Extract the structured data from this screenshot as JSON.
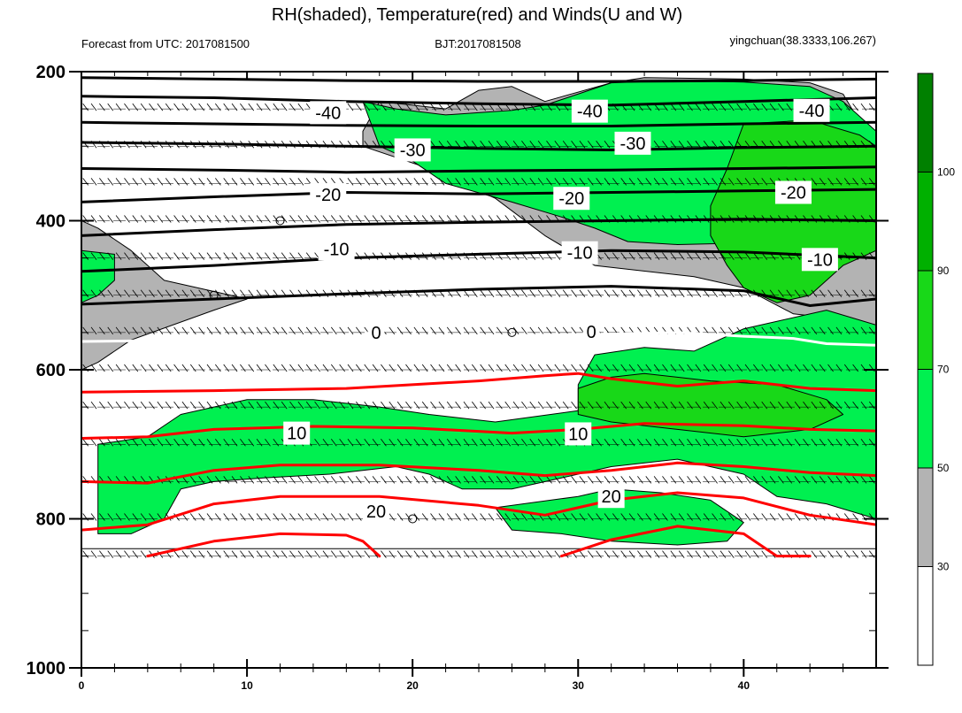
{
  "chart_data": {
    "type": "area",
    "title": "RH(shaded), Temperature(red) and Winds(U and W)",
    "subtitle_left": "Forecast from UTC: 2017081500",
    "subtitle_center": "BJT:2017081508",
    "subtitle_right": "yingchuan(38.3333,106.267)",
    "xlim": [
      0,
      48
    ],
    "ylim": [
      1000,
      200
    ],
    "x_ticks": [
      0,
      10,
      20,
      30,
      40
    ],
    "y_ticks": [
      200,
      400,
      600,
      800,
      1000
    ],
    "colorbar": {
      "ticks": [
        30,
        50,
        70,
        90,
        100
      ],
      "colors": [
        "#ffffff",
        "#b3b3b3",
        "#00f050",
        "#18d818",
        "#00b000",
        "#008000"
      ]
    },
    "colors": {
      "gray": "#b3b3b3",
      "green_light": "#00f050",
      "green_mid": "#18d818",
      "green_dark": "#00b000",
      "temp_warm": "#ff0000",
      "temp_cold": "#000000",
      "freezing": "#ffffff"
    },
    "rh_regions": [
      {
        "level": "gray",
        "points": [
          [
            0,
            400
          ],
          [
            1,
            410
          ],
          [
            3,
            440
          ],
          [
            5,
            480
          ],
          [
            8,
            495
          ],
          [
            10,
            505
          ],
          [
            8,
            520
          ],
          [
            3,
            560
          ],
          [
            1,
            590
          ],
          [
            0,
            600
          ],
          [
            0,
            840
          ],
          [
            48,
            840
          ],
          [
            48,
            305
          ],
          [
            46,
            230
          ],
          [
            44,
            215
          ],
          [
            40,
            210
          ],
          [
            34,
            208
          ],
          [
            32,
            215
          ],
          [
            28,
            240
          ],
          [
            26,
            220
          ],
          [
            24,
            225
          ],
          [
            22,
            250
          ],
          [
            20,
            245
          ],
          [
            18,
            240
          ],
          [
            17,
            280
          ],
          [
            17,
            300
          ],
          [
            21,
            330
          ],
          [
            25,
            370
          ],
          [
            28,
            420
          ],
          [
            31,
            460
          ],
          [
            37,
            475
          ],
          [
            40,
            490
          ],
          [
            43,
            525
          ],
          [
            47,
            535
          ],
          [
            48,
            540
          ],
          [
            48,
            840
          ],
          [
            0,
            840
          ]
        ]
      },
      {
        "level": "green_light",
        "points": [
          [
            0,
            440
          ],
          [
            2,
            445
          ],
          [
            2,
            480
          ],
          [
            1,
            500
          ],
          [
            0,
            510
          ]
        ]
      },
      {
        "level": "green_light",
        "points": [
          [
            1,
            700
          ],
          [
            4,
            690
          ],
          [
            6,
            660
          ],
          [
            10,
            640
          ],
          [
            14,
            640
          ],
          [
            18,
            650
          ],
          [
            21,
            660
          ],
          [
            25,
            670
          ],
          [
            30,
            655
          ],
          [
            30,
            620
          ],
          [
            31,
            580
          ],
          [
            34,
            570
          ],
          [
            37,
            575
          ],
          [
            40,
            545
          ],
          [
            45,
            520
          ],
          [
            48,
            540
          ],
          [
            48,
            800
          ],
          [
            45,
            780
          ],
          [
            42,
            770
          ],
          [
            40,
            740
          ],
          [
            36,
            720
          ],
          [
            32,
            730
          ],
          [
            29,
            745
          ],
          [
            26,
            760
          ],
          [
            23,
            760
          ],
          [
            21,
            740
          ],
          [
            19,
            730
          ],
          [
            15,
            740
          ],
          [
            11,
            745
          ],
          [
            8,
            750
          ],
          [
            6,
            760
          ],
          [
            5,
            800
          ],
          [
            3,
            820
          ],
          [
            1,
            820
          ]
        ]
      },
      {
        "level": "green_light",
        "points": [
          [
            25,
            785
          ],
          [
            30,
            770
          ],
          [
            32,
            760
          ],
          [
            35,
            765
          ],
          [
            38,
            775
          ],
          [
            40,
            805
          ],
          [
            39,
            830
          ],
          [
            36,
            835
          ],
          [
            32,
            830
          ],
          [
            29,
            820
          ],
          [
            26,
            815
          ]
        ]
      },
      {
        "level": "green_light",
        "points": [
          [
            17,
            240
          ],
          [
            19,
            250
          ],
          [
            22,
            258
          ],
          [
            26,
            252
          ],
          [
            28,
            245
          ],
          [
            32,
            215
          ],
          [
            36,
            212
          ],
          [
            40,
            214
          ],
          [
            44,
            220
          ],
          [
            46,
            240
          ],
          [
            48,
            280
          ],
          [
            48,
            350
          ],
          [
            45,
            360
          ],
          [
            44,
            400
          ],
          [
            42,
            420
          ],
          [
            40,
            430
          ],
          [
            36,
            432
          ],
          [
            33,
            428
          ],
          [
            31,
            410
          ],
          [
            29,
            395
          ],
          [
            26,
            375
          ],
          [
            22,
            350
          ],
          [
            20,
            320
          ],
          [
            18,
            300
          ]
        ]
      },
      {
        "level": "green_mid",
        "points": [
          [
            40,
            270
          ],
          [
            44,
            265
          ],
          [
            47,
            285
          ],
          [
            48,
            300
          ],
          [
            48,
            440
          ],
          [
            46,
            460
          ],
          [
            44,
            500
          ],
          [
            42,
            510
          ],
          [
            40,
            490
          ],
          [
            39,
            460
          ],
          [
            38,
            420
          ],
          [
            38,
            380
          ],
          [
            39,
            330
          ]
        ]
      },
      {
        "level": "green_mid",
        "points": [
          [
            30,
            625
          ],
          [
            32,
            610
          ],
          [
            34,
            605
          ],
          [
            38,
            615
          ],
          [
            42,
            620
          ],
          [
            45,
            640
          ],
          [
            46,
            660
          ],
          [
            44,
            680
          ],
          [
            40,
            690
          ],
          [
            36,
            680
          ],
          [
            32,
            670
          ],
          [
            30,
            660
          ]
        ]
      }
    ],
    "temperature_contours": [
      {
        "value": -50,
        "kind": "cold",
        "points": [
          [
            0,
            208
          ],
          [
            8,
            210
          ],
          [
            16,
            212
          ],
          [
            24,
            213
          ],
          [
            32,
            213
          ],
          [
            40,
            212
          ],
          [
            48,
            210
          ]
        ]
      },
      {
        "value": -40,
        "kind": "cold",
        "points": [
          [
            0,
            233
          ],
          [
            8,
            235
          ],
          [
            16,
            240
          ],
          [
            24,
            243
          ],
          [
            32,
            245
          ],
          [
            40,
            240
          ],
          [
            48,
            235
          ]
        ]
      },
      {
        "value": -35,
        "kind": "cold",
        "points": [
          [
            0,
            268
          ],
          [
            8,
            270
          ],
          [
            16,
            272
          ],
          [
            24,
            273
          ],
          [
            32,
            273
          ],
          [
            40,
            270
          ],
          [
            48,
            268
          ]
        ]
      },
      {
        "value": -30,
        "kind": "cold",
        "points": [
          [
            0,
            295
          ],
          [
            8,
            297
          ],
          [
            16,
            300
          ],
          [
            24,
            303
          ],
          [
            32,
            305
          ],
          [
            40,
            302
          ],
          [
            48,
            300
          ]
        ]
      },
      {
        "value": -25,
        "kind": "cold",
        "points": [
          [
            0,
            330
          ],
          [
            8,
            332
          ],
          [
            16,
            335
          ],
          [
            24,
            333
          ],
          [
            32,
            332
          ],
          [
            40,
            330
          ],
          [
            48,
            328
          ]
        ]
      },
      {
        "value": -20,
        "kind": "cold",
        "points": [
          [
            0,
            375
          ],
          [
            8,
            368
          ],
          [
            16,
            362
          ],
          [
            24,
            364
          ],
          [
            32,
            362
          ],
          [
            40,
            360
          ],
          [
            48,
            358
          ]
        ]
      },
      {
        "value": -15,
        "kind": "cold",
        "points": [
          [
            0,
            420
          ],
          [
            8,
            412
          ],
          [
            16,
            405
          ],
          [
            24,
            402
          ],
          [
            32,
            400
          ],
          [
            40,
            398
          ],
          [
            48,
            400
          ]
        ]
      },
      {
        "value": -10,
        "kind": "cold",
        "points": [
          [
            0,
            468
          ],
          [
            8,
            460
          ],
          [
            16,
            450
          ],
          [
            24,
            445
          ],
          [
            32,
            440
          ],
          [
            40,
            442
          ],
          [
            48,
            450
          ]
        ]
      },
      {
        "value": -5,
        "kind": "cold",
        "points": [
          [
            0,
            512
          ],
          [
            8,
            505
          ],
          [
            16,
            498
          ],
          [
            24,
            492
          ],
          [
            32,
            488
          ],
          [
            40,
            494
          ],
          [
            44,
            514
          ],
          [
            48,
            505
          ]
        ]
      },
      {
        "value": 0,
        "kind": "freezing",
        "points": [
          [
            0,
            562
          ],
          [
            8,
            560
          ],
          [
            16,
            560
          ],
          [
            24,
            555
          ],
          [
            32,
            552
          ],
          [
            36,
            550
          ],
          [
            40,
            555
          ],
          [
            43,
            558
          ],
          [
            45,
            565
          ],
          [
            48,
            567
          ]
        ]
      },
      {
        "value": 5,
        "kind": "warm",
        "points": [
          [
            0,
            630
          ],
          [
            8,
            628
          ],
          [
            16,
            625
          ],
          [
            24,
            615
          ],
          [
            28,
            608
          ],
          [
            30,
            605
          ],
          [
            32,
            612
          ],
          [
            36,
            622
          ],
          [
            40,
            615
          ],
          [
            44,
            625
          ],
          [
            48,
            628
          ]
        ]
      },
      {
        "value": 10,
        "kind": "warm",
        "points": [
          [
            0,
            692
          ],
          [
            4,
            690
          ],
          [
            8,
            680
          ],
          [
            14,
            676
          ],
          [
            20,
            678
          ],
          [
            26,
            685
          ],
          [
            30,
            680
          ],
          [
            34,
            672
          ],
          [
            40,
            675
          ],
          [
            44,
            680
          ],
          [
            48,
            682
          ]
        ]
      },
      {
        "value": 15,
        "kind": "warm",
        "points": [
          [
            0,
            750
          ],
          [
            4,
            752
          ],
          [
            8,
            735
          ],
          [
            12,
            728
          ],
          [
            18,
            728
          ],
          [
            24,
            735
          ],
          [
            28,
            742
          ],
          [
            32,
            735
          ],
          [
            36,
            725
          ],
          [
            40,
            730
          ],
          [
            44,
            738
          ],
          [
            48,
            742
          ]
        ]
      },
      {
        "value": 20,
        "kind": "warm",
        "points": [
          [
            0,
            815
          ],
          [
            4,
            808
          ],
          [
            8,
            780
          ],
          [
            12,
            770
          ],
          [
            18,
            770
          ],
          [
            24,
            782
          ],
          [
            28,
            795
          ],
          [
            32,
            775
          ],
          [
            36,
            765
          ],
          [
            40,
            772
          ],
          [
            44,
            795
          ],
          [
            48,
            808
          ]
        ]
      },
      {
        "value": 25,
        "kind": "warm",
        "points": [
          [
            4,
            850
          ],
          [
            8,
            830
          ],
          [
            12,
            820
          ],
          [
            16,
            822
          ],
          [
            17,
            830
          ],
          [
            18,
            850
          ]
        ]
      },
      {
        "value": 25,
        "kind": "warm",
        "points": [
          [
            29,
            850
          ],
          [
            32,
            828
          ],
          [
            36,
            810
          ],
          [
            40,
            820
          ],
          [
            42,
            850
          ],
          [
            44,
            850
          ]
        ]
      }
    ],
    "contour_labels": [
      {
        "text": "-40",
        "x": 14.9,
        "y": 255
      },
      {
        "text": "-40",
        "x": 30.7,
        "y": 253
      },
      {
        "text": "-40",
        "x": 44.1,
        "y": 252
      },
      {
        "text": "-30",
        "x": 20,
        "y": 305
      },
      {
        "text": "-30",
        "x": 33.3,
        "y": 296
      },
      {
        "text": "-20",
        "x": 14.9,
        "y": 365
      },
      {
        "text": "-20",
        "x": 29.6,
        "y": 370
      },
      {
        "text": "-20",
        "x": 43,
        "y": 362
      },
      {
        "text": "-10",
        "x": 15.4,
        "y": 438
      },
      {
        "text": "-10",
        "x": 30.1,
        "y": 443
      },
      {
        "text": "-10",
        "x": 44.6,
        "y": 452
      },
      {
        "text": "0",
        "x": 17.8,
        "y": 550
      },
      {
        "text": "0",
        "x": 30.8,
        "y": 549
      },
      {
        "text": "10",
        "x": 13,
        "y": 685
      },
      {
        "text": "10",
        "x": 30,
        "y": 686
      },
      {
        "text": "20",
        "x": 17.8,
        "y": 790
      },
      {
        "text": "20",
        "x": 32,
        "y": 770
      }
    ],
    "markers": [
      {
        "x": 12,
        "y": 400
      },
      {
        "x": 8,
        "y": 500
      },
      {
        "x": 26,
        "y": 550
      },
      {
        "x": 20,
        "y": 800
      }
    ],
    "wind_levels": [
      250,
      300,
      350,
      400,
      450,
      500,
      550,
      600,
      650,
      700,
      750,
      800,
      850
    ]
  }
}
